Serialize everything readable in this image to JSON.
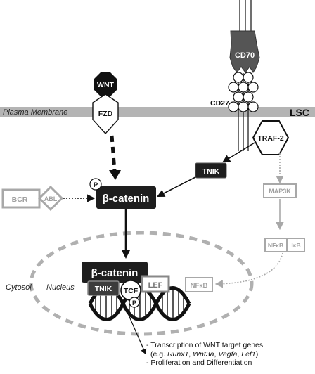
{
  "diagram": {
    "membrane_label": "Plasma Membrane",
    "cell_label": "LSC",
    "cytosol_label": "Cytosol",
    "nucleus_label": "Nucleus",
    "nodes": {
      "wnt": "WNT",
      "fzd": "FZD",
      "cd70": "CD70",
      "cd27": "CD27",
      "traf2": "TRAF-2",
      "tnik_cyto": "TNIK",
      "beta_catenin_cyto": "β-catenin",
      "phospho_cyto": "P",
      "bcr": "BCR",
      "abl": "ABL",
      "map3k": "MAP3K",
      "nfkb": "NFκB",
      "ikb": "IκB",
      "beta_catenin_nuc": "β-catenin",
      "tnik_nuc": "TNIK",
      "tcf": "TCF",
      "lef": "LEF",
      "nfkb_nuc": "NFκB",
      "phospho_nuc": "P"
    },
    "outcomes": {
      "line1": "- Transcription of WNT target genes",
      "line2_prefix": "(e.g. ",
      "genes": [
        "Runx1",
        "Wnt3a",
        "Vegfa",
        "Lef1"
      ],
      "line2_suffix": ")",
      "line3": "- Proliferation and Differentiation"
    },
    "colors": {
      "membrane": "#b4b4b4",
      "dark_node": "#1e1e1e",
      "grey_node": "#a8a8a8",
      "nucleus_dash": "#b0b0b0"
    }
  }
}
